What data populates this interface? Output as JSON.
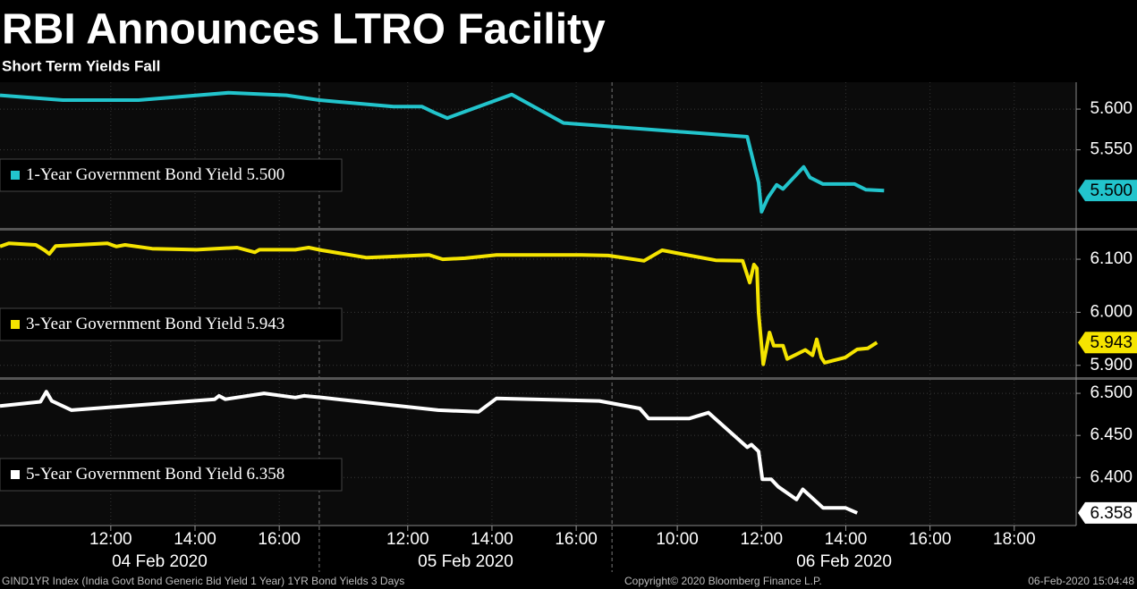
{
  "chart_data": {
    "type": "line",
    "title": "RBI Announces LTRO Facility",
    "subtitle": "Short Term Yields Fall",
    "days": [
      {
        "label": "04 Feb 2020",
        "xlim": [
          9.37,
          16.95
        ],
        "xticks": [
          {
            "value": 12,
            "label": "12:00"
          },
          {
            "value": 14,
            "label": "14:00"
          },
          {
            "value": 16,
            "label": "16:00"
          }
        ]
      },
      {
        "label": "05 Feb 2020",
        "xlim": [
          33.9,
          40.85
        ],
        "xticks": [
          {
            "value": 36,
            "label": "12:00"
          },
          {
            "value": 38,
            "label": "14:00"
          },
          {
            "value": 40,
            "label": "16:00"
          }
        ]
      },
      {
        "label": "06 Feb 2020",
        "xlim": [
          56.45,
          67.47
        ],
        "xticks": [
          {
            "value": 58,
            "label": "10:00"
          },
          {
            "value": 60,
            "label": "12:00"
          },
          {
            "value": 62,
            "label": "14:00"
          },
          {
            "value": 64,
            "label": "16:00"
          },
          {
            "value": 66,
            "label": "18:00"
          }
        ]
      }
    ],
    "series": [
      {
        "name": "1-Year Government Bond Yield",
        "color": "#22c4cc",
        "last_value_label": "5.500",
        "ylim": [
          5.453,
          5.633
        ],
        "yticks": [
          {
            "value": 5.6,
            "label": "5.600"
          },
          {
            "value": 5.55,
            "label": "5.550"
          }
        ],
        "x": [
          9.37,
          10.86,
          12.66,
          14.79,
          16.17,
          33.9,
          35.66,
          36.34,
          36.62,
          36.94,
          38.47,
          39.7,
          59.66,
          59.93,
          60.0,
          60.15,
          60.36,
          60.51,
          61.0,
          61.15,
          61.46,
          62.21,
          62.48,
          62.91
        ],
        "values": [
          5.617,
          5.611,
          5.611,
          5.62,
          5.617,
          5.611,
          5.603,
          5.603,
          5.596,
          5.589,
          5.618,
          5.583,
          5.566,
          5.51,
          5.474,
          5.491,
          5.507,
          5.502,
          5.529,
          5.516,
          5.508,
          5.508,
          5.501,
          5.5
        ]
      },
      {
        "name": "3-Year Government Bond Yield",
        "color": "#f5e400",
        "last_value_label": "5.943",
        "ylim": [
          5.876,
          6.154
        ],
        "yticks": [
          {
            "value": 6.1,
            "label": "6.100"
          },
          {
            "value": 6.0,
            "label": "6.000"
          },
          {
            "value": 5.9,
            "label": "5.900"
          }
        ],
        "x": [
          9.37,
          9.58,
          10.22,
          10.43,
          10.54,
          10.69,
          11.92,
          12.13,
          12.34,
          12.98,
          14.04,
          15.0,
          15.42,
          15.53,
          16.38,
          16.7,
          33.96,
          35.03,
          36.51,
          36.83,
          37.36,
          38.11,
          40.12,
          40.76,
          56.79,
          57.21,
          57.64,
          57.96,
          58.91,
          59.55,
          59.72,
          59.82,
          59.89,
          59.93,
          60.04,
          60.19,
          60.29,
          60.51,
          60.61,
          61.04,
          61.21,
          61.31,
          61.42,
          61.5,
          61.99,
          62.27,
          62.52,
          62.74
        ],
        "values": [
          6.124,
          6.13,
          6.127,
          6.117,
          6.11,
          6.125,
          6.13,
          6.124,
          6.127,
          6.12,
          6.118,
          6.122,
          6.113,
          6.118,
          6.118,
          6.122,
          6.117,
          6.103,
          6.108,
          6.1,
          6.102,
          6.108,
          6.108,
          6.107,
          6.102,
          6.097,
          6.117,
          6.112,
          6.098,
          6.097,
          6.056,
          6.09,
          6.083,
          5.999,
          5.902,
          5.962,
          5.937,
          5.937,
          5.912,
          5.929,
          5.919,
          5.949,
          5.915,
          5.905,
          5.915,
          5.93,
          5.932,
          5.943
        ]
      },
      {
        "name": "5-Year Government Bond Yield",
        "color": "#ffffff",
        "last_value_label": "6.358",
        "ylim": [
          6.343,
          6.516
        ],
        "yticks": [
          {
            "value": 6.5,
            "label": "6.500"
          },
          {
            "value": 6.45,
            "label": "6.450"
          },
          {
            "value": 6.4,
            "label": "6.400"
          }
        ],
        "x": [
          9.37,
          10.33,
          10.47,
          10.6,
          11.07,
          14.47,
          14.57,
          14.72,
          15.64,
          16.38,
          16.59,
          33.96,
          36.72,
          37.68,
          38.11,
          40.55,
          57.11,
          57.32,
          58.28,
          58.74,
          59.66,
          59.76,
          59.93,
          60.02,
          60.23,
          60.4,
          60.83,
          60.98,
          61.46,
          61.99,
          62.27
        ],
        "values": [
          6.485,
          6.49,
          6.502,
          6.491,
          6.48,
          6.493,
          6.497,
          6.493,
          6.5,
          6.495,
          6.497,
          6.495,
          6.48,
          6.478,
          6.494,
          6.491,
          6.482,
          6.47,
          6.47,
          6.477,
          6.436,
          6.439,
          6.431,
          6.398,
          6.398,
          6.389,
          6.374,
          6.386,
          6.364,
          6.364,
          6.358
        ]
      }
    ]
  },
  "footer": {
    "source": "GIND1YR Index (India Govt Bond Generic Bid Yield 1 Year) 1YR Bond Yields 3 Days",
    "copyright": "Copyright© 2020 Bloomberg Finance L.P.",
    "timestamp": "06-Feb-2020 15:04:48"
  }
}
